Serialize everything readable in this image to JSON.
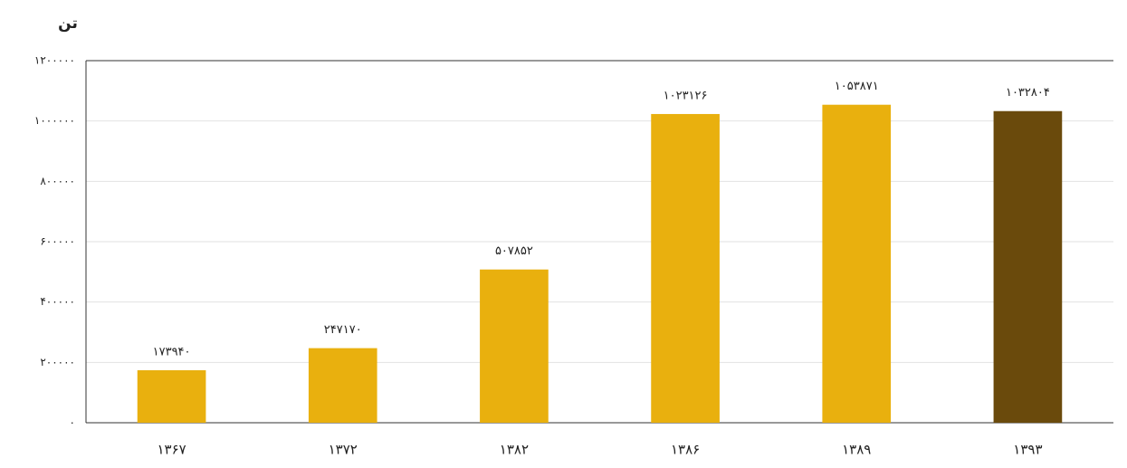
{
  "chart_data": {
    "type": "bar",
    "y_label": "تن",
    "categories": [
      "۱۳۶۷",
      "۱۳۷۲",
      "۱۳۸۲",
      "۱۳۸۶",
      "۱۳۸۹",
      "۱۳۹۳"
    ],
    "values": [
      173940,
      247170,
      507852,
      1023126,
      1053871,
      1032804
    ],
    "value_labels": [
      "۱۷۳۹۴۰",
      "۲۴۷۱۷۰",
      "۵۰۷۸۵۲",
      "۱۰۲۳۱۲۶",
      "۱۰۵۳۸۷۱",
      "۱۰۳۲۸۰۴"
    ],
    "colors": [
      "#e9b00e",
      "#e9b00e",
      "#e9b00e",
      "#e9b00e",
      "#e9b00e",
      "#6a4a0c"
    ],
    "ylim": [
      0,
      1200000
    ],
    "yticks": [
      {
        "value": 0,
        "label": "۰"
      },
      {
        "value": 200000,
        "label": "۲۰۰۰۰۰"
      },
      {
        "value": 400000,
        "label": "۴۰۰۰۰۰"
      },
      {
        "value": 600000,
        "label": "۶۰۰۰۰۰"
      },
      {
        "value": 800000,
        "label": "۸۰۰۰۰۰"
      },
      {
        "value": 1000000,
        "label": "۱۰۰۰۰۰۰"
      },
      {
        "value": 1200000,
        "label": "۱۲۰۰۰۰۰"
      }
    ],
    "grid": true
  }
}
